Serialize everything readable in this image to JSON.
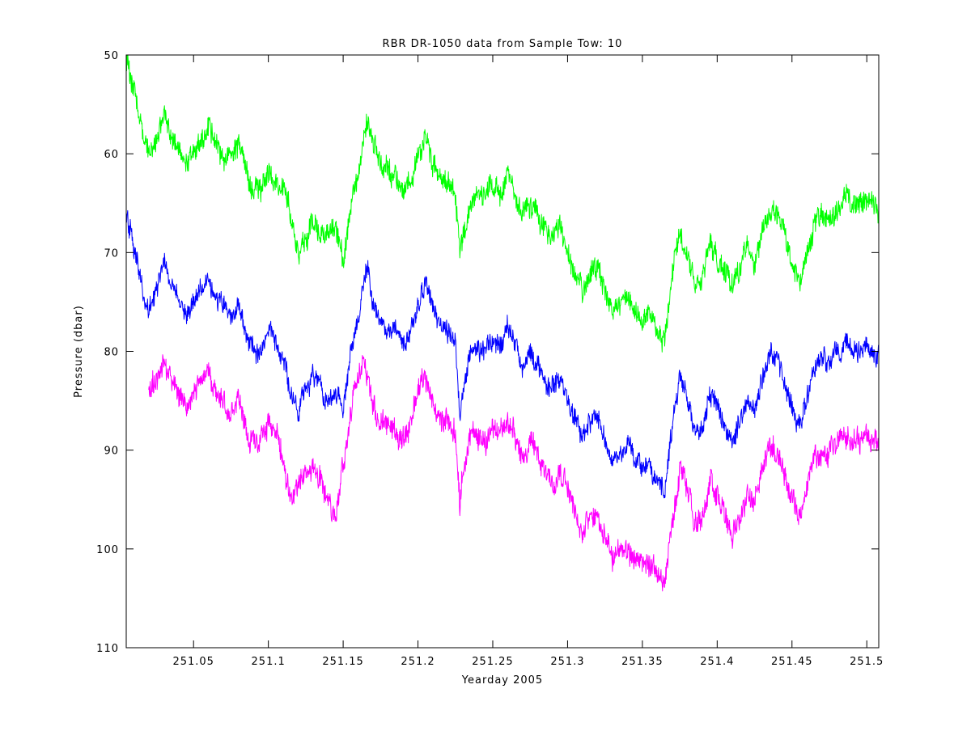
{
  "chart_data": {
    "type": "line",
    "title": "RBR DR-1050 data from Sample Tow: 10",
    "xlabel": "Yearday 2005",
    "ylabel": "Pressure (dbar)",
    "xlim": [
      251.005,
      251.508
    ],
    "ylim": [
      50,
      110
    ],
    "y_reversed": true,
    "grid": false,
    "legend": "none",
    "xticks": [
      251.05,
      251.1,
      251.15,
      251.2,
      251.25,
      251.3,
      251.35,
      251.4,
      251.45,
      251.5
    ],
    "xtick_labels": [
      "251.05",
      "251.1",
      "251.15",
      "251.2",
      "251.25",
      "251.3",
      "251.35",
      "251.4",
      "251.45",
      "251.5"
    ],
    "yticks": [
      50,
      60,
      70,
      80,
      90,
      100,
      110
    ],
    "ytick_labels": [
      "50",
      "60",
      "70",
      "80",
      "90",
      "100",
      "110"
    ],
    "series": [
      {
        "color": "#00ff00",
        "noise": 1.0,
        "x": [
          251.005,
          251.01,
          251.015,
          251.02,
          251.025,
          251.03,
          251.035,
          251.04,
          251.045,
          251.05,
          251.055,
          251.06,
          251.065,
          251.07,
          251.075,
          251.08,
          251.085,
          251.09,
          251.095,
          251.1,
          251.105,
          251.11,
          251.115,
          251.12,
          251.125,
          251.13,
          251.135,
          251.14,
          251.145,
          251.15,
          251.155,
          251.16,
          251.163,
          251.166,
          251.17,
          251.175,
          251.18,
          251.185,
          251.19,
          251.195,
          251.2,
          251.205,
          251.21,
          251.215,
          251.22,
          251.225,
          251.228,
          251.23,
          251.235,
          251.24,
          251.245,
          251.25,
          251.255,
          251.26,
          251.265,
          251.27,
          251.275,
          251.28,
          251.285,
          251.29,
          251.295,
          251.3,
          251.305,
          251.31,
          251.315,
          251.32,
          251.325,
          251.33,
          251.335,
          251.34,
          251.345,
          251.35,
          251.355,
          251.36,
          251.365,
          251.37,
          251.375,
          251.38,
          251.385,
          251.39,
          251.395,
          251.4,
          251.405,
          251.41,
          251.415,
          251.42,
          251.425,
          251.43,
          251.435,
          251.44,
          251.445,
          251.45,
          251.455,
          251.46,
          251.465,
          251.47,
          251.475,
          251.48,
          251.485,
          251.49,
          251.495,
          251.5,
          251.508
        ],
        "y": [
          50.5,
          53,
          57,
          60,
          59,
          56,
          58,
          59.5,
          61,
          60,
          58.5,
          57.5,
          59,
          60,
          61,
          59,
          62,
          64,
          64,
          62,
          63,
          63,
          66,
          70,
          68.5,
          67,
          68,
          69,
          67,
          71,
          65,
          62,
          58,
          56.5,
          59,
          61,
          62,
          62.5,
          64,
          62.5,
          60,
          58.5,
          61,
          62,
          63,
          64,
          70,
          68,
          65,
          64.5,
          64,
          63,
          64,
          62,
          64,
          66,
          65,
          66,
          68,
          68.5,
          67,
          70,
          72,
          73.5,
          72,
          71.5,
          74,
          76,
          75.5,
          74.5,
          76,
          77,
          76,
          77.5,
          79,
          72,
          68,
          70,
          73,
          73,
          69,
          70.5,
          72,
          73,
          72,
          69.5,
          71,
          68,
          66,
          66.5,
          68,
          71,
          73,
          70,
          67,
          66.5,
          67,
          66,
          64,
          65,
          65,
          64.5,
          66
        ]
      },
      {
        "color": "#0000ff",
        "noise": 0.85,
        "x": [
          251.005,
          251.01,
          251.015,
          251.02,
          251.025,
          251.03,
          251.035,
          251.04,
          251.045,
          251.05,
          251.055,
          251.06,
          251.065,
          251.07,
          251.075,
          251.08,
          251.085,
          251.09,
          251.095,
          251.1,
          251.105,
          251.11,
          251.115,
          251.12,
          251.125,
          251.13,
          251.135,
          251.14,
          251.145,
          251.15,
          251.155,
          251.16,
          251.163,
          251.166,
          251.17,
          251.175,
          251.18,
          251.185,
          251.19,
          251.195,
          251.2,
          251.205,
          251.21,
          251.215,
          251.22,
          251.225,
          251.228,
          251.23,
          251.235,
          251.24,
          251.245,
          251.25,
          251.255,
          251.26,
          251.265,
          251.27,
          251.275,
          251.28,
          251.285,
          251.29,
          251.295,
          251.3,
          251.305,
          251.31,
          251.315,
          251.32,
          251.325,
          251.33,
          251.335,
          251.34,
          251.345,
          251.35,
          251.355,
          251.36,
          251.365,
          251.37,
          251.375,
          251.38,
          251.385,
          251.39,
          251.395,
          251.4,
          251.405,
          251.41,
          251.415,
          251.42,
          251.425,
          251.43,
          251.435,
          251.44,
          251.445,
          251.45,
          251.455,
          251.46,
          251.465,
          251.47,
          251.475,
          251.48,
          251.485,
          251.49,
          251.495,
          251.5,
          251.508
        ],
        "y": [
          66.5,
          69,
          73,
          76,
          74,
          71,
          73,
          75,
          76.5,
          75,
          73.5,
          73,
          74.5,
          75.5,
          77,
          75,
          78,
          80,
          80,
          78,
          79,
          81,
          84,
          86,
          84,
          82.5,
          83.5,
          85,
          84.5,
          86,
          80,
          77,
          73,
          72,
          75,
          77,
          78,
          78,
          79.5,
          78,
          75,
          73,
          76,
          77.5,
          78,
          79,
          86,
          84,
          80,
          79.5,
          80,
          78.5,
          79.5,
          77.5,
          79.5,
          81.5,
          80.5,
          81,
          83.5,
          84,
          82.5,
          85,
          87,
          88.5,
          87,
          86.5,
          89,
          91,
          90.5,
          89.5,
          91,
          92,
          91.5,
          93,
          94,
          87.5,
          82.5,
          84.5,
          88,
          88,
          84,
          85.5,
          87.5,
          89,
          87.5,
          85,
          86,
          83,
          80,
          81,
          83,
          85.5,
          87.5,
          85,
          81.5,
          81,
          81,
          80.5,
          79,
          80,
          80,
          79.5,
          80.5
        ]
      },
      {
        "color": "#ff00ff",
        "noise": 1.0,
        "x": [
          251.02,
          251.025,
          251.03,
          251.035,
          251.04,
          251.045,
          251.05,
          251.055,
          251.06,
          251.065,
          251.07,
          251.075,
          251.08,
          251.085,
          251.09,
          251.095,
          251.1,
          251.105,
          251.11,
          251.115,
          251.12,
          251.125,
          251.13,
          251.135,
          251.14,
          251.145,
          251.15,
          251.155,
          251.16,
          251.163,
          251.166,
          251.17,
          251.175,
          251.18,
          251.185,
          251.19,
          251.195,
          251.2,
          251.205,
          251.21,
          251.215,
          251.22,
          251.225,
          251.228,
          251.23,
          251.235,
          251.24,
          251.245,
          251.25,
          251.255,
          251.26,
          251.265,
          251.27,
          251.275,
          251.28,
          251.285,
          251.29,
          251.295,
          251.3,
          251.305,
          251.31,
          251.315,
          251.32,
          251.325,
          251.33,
          251.335,
          251.34,
          251.345,
          251.35,
          251.355,
          251.36,
          251.365,
          251.37,
          251.375,
          251.38,
          251.385,
          251.39,
          251.395,
          251.4,
          251.405,
          251.41,
          251.415,
          251.42,
          251.425,
          251.43,
          251.435,
          251.44,
          251.445,
          251.45,
          251.455,
          251.46,
          251.465,
          251.47,
          251.475,
          251.48,
          251.485,
          251.49,
          251.495,
          251.5,
          251.508
        ],
        "y": [
          84,
          83,
          80.5,
          82.5,
          84.5,
          85.5,
          84.5,
          83,
          82,
          84,
          85,
          86.5,
          84.5,
          87.5,
          89.5,
          89,
          87,
          88.5,
          91,
          94.5,
          94,
          92.5,
          91.5,
          93,
          95,
          97,
          92,
          86,
          82,
          81,
          83,
          85.5,
          87,
          87.5,
          88,
          89,
          87.5,
          84,
          82.5,
          85,
          87,
          87,
          88,
          95,
          92,
          88.5,
          88,
          89,
          87.5,
          88.5,
          87,
          88.5,
          90.5,
          89.5,
          90,
          92.5,
          93.5,
          92,
          94,
          96.5,
          98,
          97,
          96.5,
          99,
          101,
          100,
          99.5,
          101,
          102,
          101.5,
          102.5,
          103.5,
          97,
          92,
          93.5,
          97,
          97,
          93,
          94.5,
          96.5,
          98.5,
          97,
          94.5,
          95.5,
          92,
          89.5,
          90.5,
          92.5,
          95,
          97,
          94,
          90.5,
          90,
          90,
          89.5,
          88,
          89,
          89,
          88.5,
          89.5
        ]
      }
    ]
  }
}
